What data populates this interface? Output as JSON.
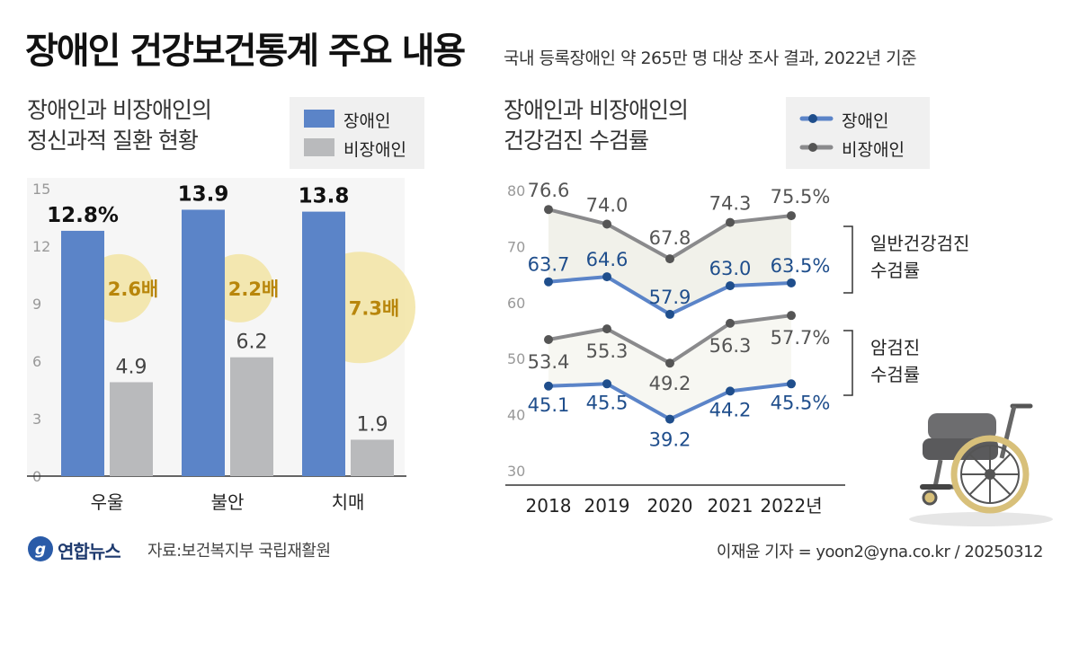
{
  "header": {
    "title": "장애인 건강보건통계 주요 내용",
    "subtitle": "국내 등록장애인 약 265만 명 대상 조사 결과, 2022년 기준"
  },
  "footer": {
    "logo_text": "연합뉴스",
    "source": "자료:보건복지부 국립재활원",
    "credit": "이재윤 기자 = yoon2@yna.co.kr / 20250312"
  },
  "colors": {
    "disabled": "#5b84c8",
    "non_disabled": "#b9babc",
    "line_disabled": "#5b84c8",
    "line_non_disabled": "#8a8a8c",
    "ratio_text": "#b8860b",
    "ratio_circle": "#f3e6a8",
    "line_label_disabled": "#1f4e8c",
    "line_label_non": "#555555"
  },
  "chart_data": [
    {
      "type": "bar",
      "title_lines": [
        "장애인과 비장애인의",
        "정신과적 질환 현황"
      ],
      "categories": [
        "우울",
        "불안",
        "치매"
      ],
      "series": [
        {
          "name": "장애인",
          "values": [
            12.8,
            13.9,
            13.8
          ],
          "labels": [
            "12.8%",
            "13.9",
            "13.8"
          ]
        },
        {
          "name": "비장애인",
          "values": [
            4.9,
            6.2,
            1.9
          ],
          "labels": [
            "4.9",
            "6.2",
            "1.9"
          ]
        }
      ],
      "ratios": [
        "2.6배",
        "2.2배",
        "7.3배"
      ],
      "y_ticks": [
        0,
        3,
        6,
        9,
        12,
        15
      ],
      "ylim": [
        0,
        15
      ],
      "legend_placement": "top-right",
      "grid": false
    },
    {
      "type": "line",
      "title_lines": [
        "장애인과 비장애인의",
        "건강검진 수검률"
      ],
      "x": [
        "2018",
        "2019",
        "2020",
        "2021",
        "2022년"
      ],
      "groups": [
        {
          "label_lines": [
            "일반건강검진",
            "수검률"
          ],
          "series": [
            {
              "name": "비장애인",
              "values": [
                76.6,
                74.0,
                67.8,
                74.3,
                75.5
              ],
              "labels": [
                "76.6",
                "74.0",
                "67.8",
                "74.3",
                "75.5%"
              ]
            },
            {
              "name": "장애인",
              "values": [
                63.7,
                64.6,
                57.9,
                63.0,
                63.5
              ],
              "labels": [
                "63.7",
                "64.6",
                "57.9",
                "63.0",
                "63.5%"
              ]
            }
          ]
        },
        {
          "label_lines": [
            "암검진",
            "수검률"
          ],
          "series": [
            {
              "name": "비장애인",
              "values": [
                53.4,
                55.3,
                49.2,
                56.3,
                57.7
              ],
              "labels": [
                "53.4",
                "55.3",
                "49.2",
                "56.3",
                "57.7%"
              ]
            },
            {
              "name": "장애인",
              "values": [
                45.1,
                45.5,
                39.2,
                44.2,
                45.5
              ],
              "labels": [
                "45.1",
                "45.5",
                "39.2",
                "44.2",
                "45.5%"
              ]
            }
          ]
        }
      ],
      "legend": [
        "장애인",
        "비장애인"
      ],
      "y_ticks": [
        30,
        40,
        50,
        60,
        70,
        80
      ],
      "ylim": [
        30,
        80
      ],
      "legend_placement": "top-right",
      "grid": false
    }
  ],
  "icons": {
    "wheelchair": "wheelchair-icon",
    "logo": "yonhap-logo-icon"
  }
}
